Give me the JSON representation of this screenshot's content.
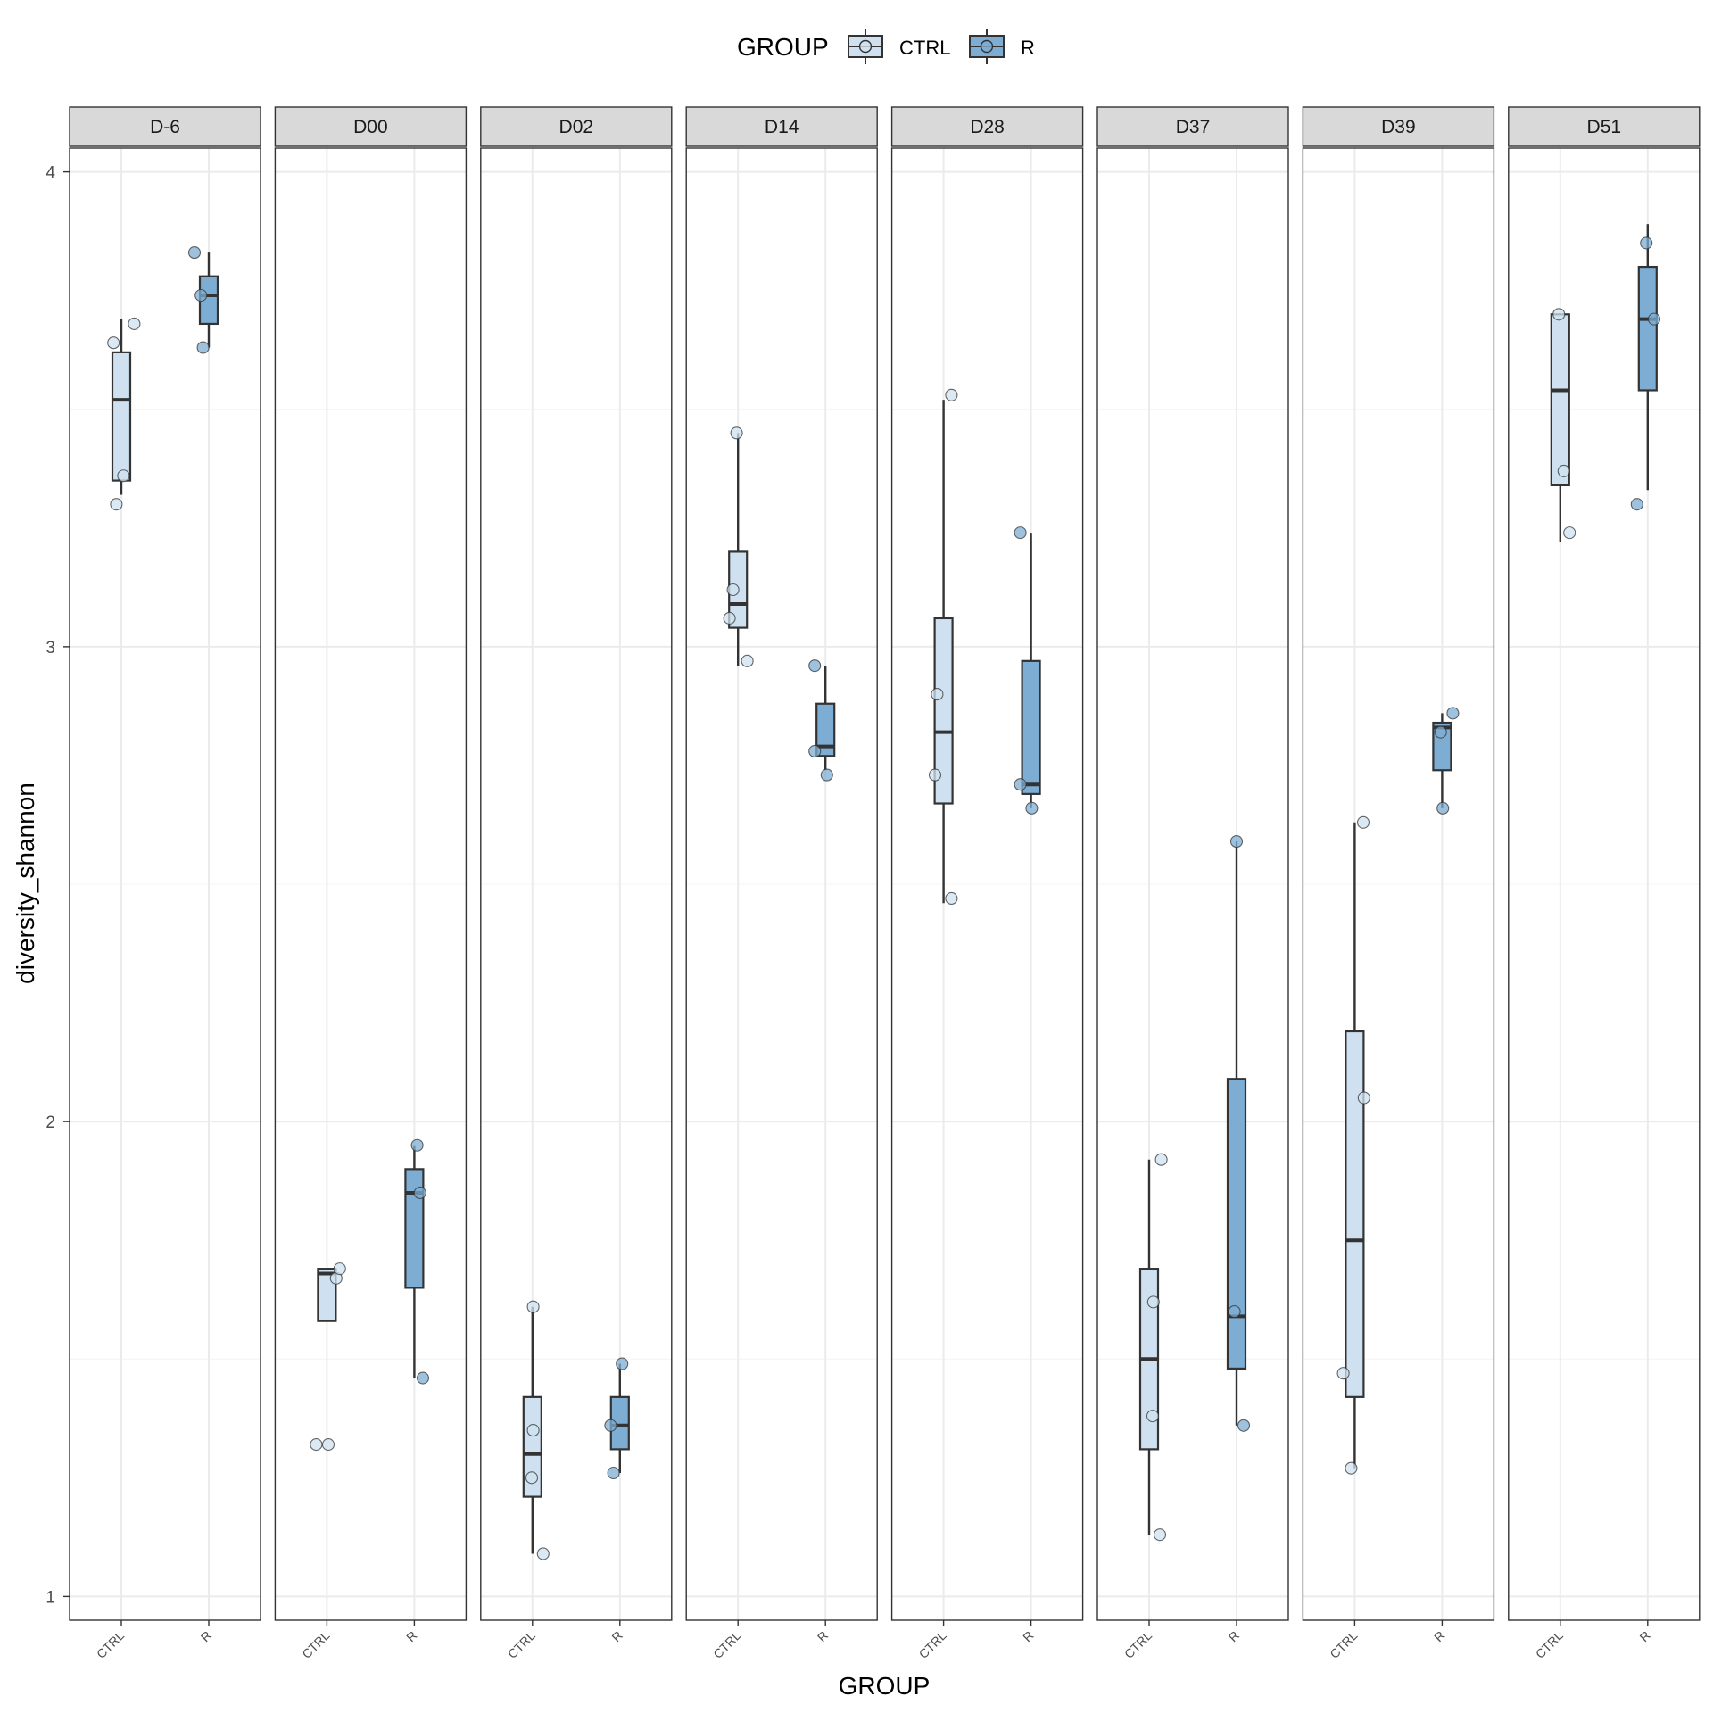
{
  "chart_data": {
    "type": "boxplot",
    "facet_by": "day",
    "xlabel": "GROUP",
    "ylabel": "diversity_shannon",
    "ylim": [
      0.95,
      4.05
    ],
    "yticks": [
      1,
      2,
      3,
      4
    ],
    "grid": true,
    "legend": {
      "title": "GROUP",
      "position": "top",
      "entries": [
        {
          "name": "CTRL",
          "color": "#cfe1f0"
        },
        {
          "name": "R",
          "color": "#7eadd3"
        }
      ]
    },
    "colors": {
      "CTRL": "#cfe1f0",
      "R": "#7eadd3",
      "strip_bg": "#d9d9d9",
      "grid_major": "#ebebeb",
      "grid_minor": "#f4f4f4",
      "box_line": "#333333"
    },
    "categories": [
      "CTRL",
      "R"
    ],
    "panels": [
      {
        "label": "D-6",
        "boxes": [
          {
            "group": "CTRL",
            "lower_whisker": 3.32,
            "q1": 3.35,
            "median": 3.52,
            "q3": 3.62,
            "upper_whisker": 3.69
          },
          {
            "group": "R",
            "lower_whisker": 3.63,
            "q1": 3.68,
            "median": 3.74,
            "q3": 3.78,
            "upper_whisker": 3.83
          }
        ],
        "points": [
          {
            "group": "CTRL",
            "x_jitter": -0.11,
            "y": 3.64
          },
          {
            "group": "CTRL",
            "x_jitter": 0.18,
            "y": 3.68
          },
          {
            "group": "CTRL",
            "x_jitter": 0.03,
            "y": 3.36
          },
          {
            "group": "CTRL",
            "x_jitter": -0.07,
            "y": 3.3
          },
          {
            "group": "R",
            "x_jitter": -0.2,
            "y": 3.83
          },
          {
            "group": "R",
            "x_jitter": -0.11,
            "y": 3.74
          },
          {
            "group": "R",
            "x_jitter": -0.08,
            "y": 3.63
          }
        ]
      },
      {
        "label": "D00",
        "boxes": [
          {
            "group": "CTRL",
            "lower_whisker": 1.58,
            "q1": 1.58,
            "median": 1.68,
            "q3": 1.69,
            "upper_whisker": 1.69
          },
          {
            "group": "R",
            "lower_whisker": 1.46,
            "q1": 1.65,
            "median": 1.85,
            "q3": 1.9,
            "upper_whisker": 1.95
          }
        ],
        "points": [
          {
            "group": "CTRL",
            "x_jitter": -0.15,
            "y": 1.32
          },
          {
            "group": "CTRL",
            "x_jitter": 0.02,
            "y": 1.32
          },
          {
            "group": "CTRL",
            "x_jitter": 0.13,
            "y": 1.67
          },
          {
            "group": "CTRL",
            "x_jitter": 0.18,
            "y": 1.69
          },
          {
            "group": "R",
            "x_jitter": 0.04,
            "y": 1.95
          },
          {
            "group": "R",
            "x_jitter": 0.08,
            "y": 1.85
          },
          {
            "group": "R",
            "x_jitter": 0.12,
            "y": 1.46
          }
        ]
      },
      {
        "label": "D02",
        "boxes": [
          {
            "group": "CTRL",
            "lower_whisker": 1.09,
            "q1": 1.21,
            "median": 1.3,
            "q3": 1.42,
            "upper_whisker": 1.61
          },
          {
            "group": "R",
            "lower_whisker": 1.26,
            "q1": 1.31,
            "median": 1.36,
            "q3": 1.42,
            "upper_whisker": 1.49
          }
        ],
        "points": [
          {
            "group": "CTRL",
            "x_jitter": 0.01,
            "y": 1.61
          },
          {
            "group": "CTRL",
            "x_jitter": 0.01,
            "y": 1.35
          },
          {
            "group": "CTRL",
            "x_jitter": -0.01,
            "y": 1.25
          },
          {
            "group": "CTRL",
            "x_jitter": 0.15,
            "y": 1.09
          },
          {
            "group": "R",
            "x_jitter": 0.03,
            "y": 1.49
          },
          {
            "group": "R",
            "x_jitter": -0.13,
            "y": 1.36
          },
          {
            "group": "R",
            "x_jitter": -0.09,
            "y": 1.26
          }
        ]
      },
      {
        "label": "D14",
        "boxes": [
          {
            "group": "CTRL",
            "lower_whisker": 2.96,
            "q1": 3.04,
            "median": 3.09,
            "q3": 3.2,
            "upper_whisker": 3.45
          },
          {
            "group": "R",
            "lower_whisker": 2.74,
            "q1": 2.77,
            "median": 2.79,
            "q3": 2.88,
            "upper_whisker": 2.96
          }
        ],
        "points": [
          {
            "group": "CTRL",
            "x_jitter": -0.02,
            "y": 3.45
          },
          {
            "group": "CTRL",
            "x_jitter": -0.07,
            "y": 3.12
          },
          {
            "group": "CTRL",
            "x_jitter": -0.12,
            "y": 3.06
          },
          {
            "group": "CTRL",
            "x_jitter": 0.13,
            "y": 2.97
          },
          {
            "group": "R",
            "x_jitter": -0.15,
            "y": 2.96
          },
          {
            "group": "R",
            "x_jitter": -0.15,
            "y": 2.78
          },
          {
            "group": "R",
            "x_jitter": 0.02,
            "y": 2.73
          }
        ]
      },
      {
        "label": "D28",
        "boxes": [
          {
            "group": "CTRL",
            "lower_whisker": 2.46,
            "q1": 2.67,
            "median": 2.82,
            "q3": 3.06,
            "upper_whisker": 3.52
          },
          {
            "group": "R",
            "lower_whisker": 2.66,
            "q1": 2.69,
            "median": 2.71,
            "q3": 2.97,
            "upper_whisker": 3.24
          }
        ],
        "points": [
          {
            "group": "CTRL",
            "x_jitter": 0.11,
            "y": 3.53
          },
          {
            "group": "CTRL",
            "x_jitter": -0.09,
            "y": 2.9
          },
          {
            "group": "CTRL",
            "x_jitter": -0.12,
            "y": 2.73
          },
          {
            "group": "CTRL",
            "x_jitter": 0.11,
            "y": 2.47
          },
          {
            "group": "R",
            "x_jitter": -0.15,
            "y": 3.24
          },
          {
            "group": "R",
            "x_jitter": -0.15,
            "y": 2.71
          },
          {
            "group": "R",
            "x_jitter": 0.01,
            "y": 2.66
          }
        ]
      },
      {
        "label": "D37",
        "boxes": [
          {
            "group": "CTRL",
            "lower_whisker": 1.13,
            "q1": 1.31,
            "median": 1.5,
            "q3": 1.69,
            "upper_whisker": 1.92
          },
          {
            "group": "R",
            "lower_whisker": 1.36,
            "q1": 1.48,
            "median": 1.59,
            "q3": 2.09,
            "upper_whisker": 2.59
          }
        ],
        "points": [
          {
            "group": "CTRL",
            "x_jitter": 0.17,
            "y": 1.92
          },
          {
            "group": "CTRL",
            "x_jitter": 0.06,
            "y": 1.62
          },
          {
            "group": "CTRL",
            "x_jitter": 0.05,
            "y": 1.38
          },
          {
            "group": "CTRL",
            "x_jitter": 0.15,
            "y": 1.13
          },
          {
            "group": "R",
            "x_jitter": 0.0,
            "y": 2.59
          },
          {
            "group": "R",
            "x_jitter": -0.03,
            "y": 1.6
          },
          {
            "group": "R",
            "x_jitter": 0.1,
            "y": 1.36
          }
        ]
      },
      {
        "label": "D39",
        "boxes": [
          {
            "group": "CTRL",
            "lower_whisker": 1.27,
            "q1": 1.42,
            "median": 1.75,
            "q3": 2.19,
            "upper_whisker": 2.63
          },
          {
            "group": "R",
            "lower_whisker": 2.66,
            "q1": 2.74,
            "median": 2.83,
            "q3": 2.84,
            "upper_whisker": 2.86
          }
        ],
        "points": [
          {
            "group": "CTRL",
            "x_jitter": 0.12,
            "y": 2.63
          },
          {
            "group": "CTRL",
            "x_jitter": 0.13,
            "y": 2.05
          },
          {
            "group": "CTRL",
            "x_jitter": -0.16,
            "y": 1.47
          },
          {
            "group": "CTRL",
            "x_jitter": -0.05,
            "y": 1.27
          },
          {
            "group": "R",
            "x_jitter": 0.15,
            "y": 2.86
          },
          {
            "group": "R",
            "x_jitter": -0.02,
            "y": 2.82
          },
          {
            "group": "R",
            "x_jitter": 0.01,
            "y": 2.66
          }
        ]
      },
      {
        "label": "D51",
        "boxes": [
          {
            "group": "CTRL",
            "lower_whisker": 3.22,
            "q1": 3.34,
            "median": 3.54,
            "q3": 3.7,
            "upper_whisker": 3.7
          },
          {
            "group": "R",
            "lower_whisker": 3.33,
            "q1": 3.54,
            "median": 3.69,
            "q3": 3.8,
            "upper_whisker": 3.89
          }
        ],
        "points": [
          {
            "group": "CTRL",
            "x_jitter": -0.02,
            "y": 3.7
          },
          {
            "group": "CTRL",
            "x_jitter": 0.05,
            "y": 3.37
          },
          {
            "group": "CTRL",
            "x_jitter": 0.13,
            "y": 3.24
          },
          {
            "group": "R",
            "x_jitter": -0.02,
            "y": 3.85
          },
          {
            "group": "R",
            "x_jitter": 0.09,
            "y": 3.69
          },
          {
            "group": "R",
            "x_jitter": -0.15,
            "y": 3.3
          }
        ]
      }
    ]
  }
}
